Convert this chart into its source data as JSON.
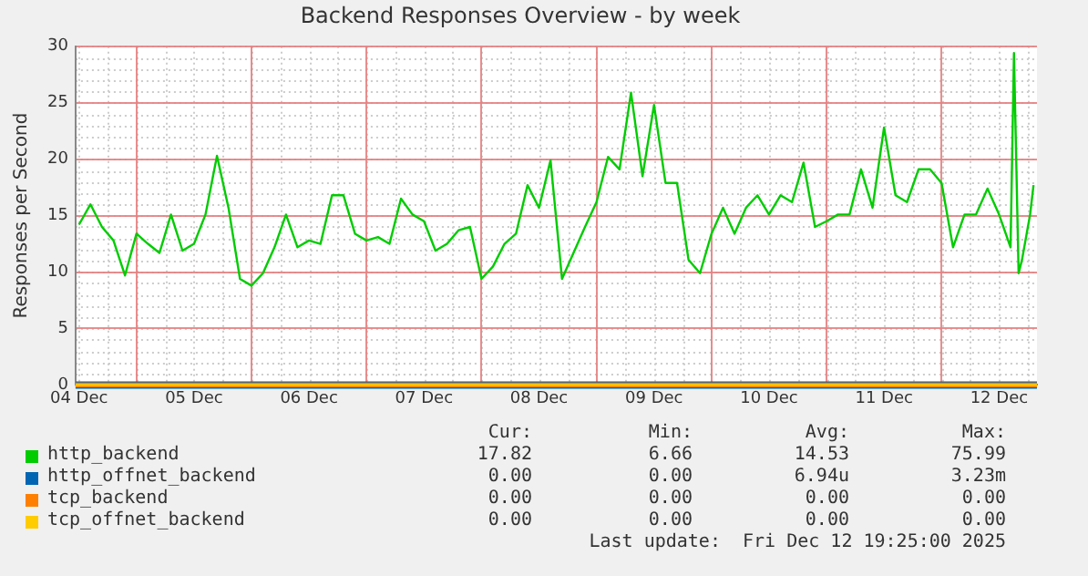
{
  "chart_data": {
    "type": "line",
    "title": "Backend Responses Overview - by week",
    "ylabel": "Responses per Second",
    "xlim": [
      "2025-12-04T11:17",
      "2025-12-12T19:55"
    ],
    "xticks": [
      {
        "value": "2025-12-04T12:00",
        "label": "04 Dec"
      },
      {
        "value": "2025-12-05T00:00",
        "label": null
      },
      {
        "value": "2025-12-05T12:00",
        "label": "05 Dec"
      },
      {
        "value": "2025-12-06T00:00",
        "label": null
      },
      {
        "value": "2025-12-06T12:00",
        "label": "06 Dec"
      },
      {
        "value": "2025-12-07T00:00",
        "label": null
      },
      {
        "value": "2025-12-07T12:00",
        "label": "07 Dec"
      },
      {
        "value": "2025-12-08T00:00",
        "label": null
      },
      {
        "value": "2025-12-08T12:00",
        "label": "08 Dec"
      },
      {
        "value": "2025-12-09T00:00",
        "label": null
      },
      {
        "value": "2025-12-09T12:00",
        "label": "09 Dec"
      },
      {
        "value": "2025-12-10T00:00",
        "label": null
      },
      {
        "value": "2025-12-10T12:00",
        "label": "10 Dec"
      },
      {
        "value": "2025-12-11T00:00",
        "label": null
      },
      {
        "value": "2025-12-11T12:00",
        "label": "11 Dec"
      },
      {
        "value": "2025-12-12T00:00",
        "label": null
      },
      {
        "value": "2025-12-12T12:00",
        "label": "12 Dec"
      }
    ],
    "ylim": [
      0,
      30
    ],
    "yticks": [
      0,
      5,
      10,
      15,
      20,
      25,
      30
    ],
    "grid": true,
    "legend": "bottom",
    "marker": "none",
    "line_style": "solid",
    "x": [
      "2025-12-04T12:00",
      "2025-12-04T14:24",
      "2025-12-04T16:48",
      "2025-12-04T19:12",
      "2025-12-04T21:36",
      "2025-12-05T00:00",
      "2025-12-05T02:24",
      "2025-12-05T04:48",
      "2025-12-05T07:12",
      "2025-12-05T09:36",
      "2025-12-05T12:00",
      "2025-12-05T14:24",
      "2025-12-05T16:48",
      "2025-12-05T19:12",
      "2025-12-05T21:36",
      "2025-12-06T00:00",
      "2025-12-06T02:24",
      "2025-12-06T04:48",
      "2025-12-06T07:12",
      "2025-12-06T09:36",
      "2025-12-06T12:00",
      "2025-12-06T14:24",
      "2025-12-06T16:48",
      "2025-12-06T19:12",
      "2025-12-06T21:36",
      "2025-12-07T00:00",
      "2025-12-07T02:24",
      "2025-12-07T04:48",
      "2025-12-07T07:12",
      "2025-12-07T09:36",
      "2025-12-07T12:00",
      "2025-12-07T14:24",
      "2025-12-07T16:48",
      "2025-12-07T19:12",
      "2025-12-07T21:36",
      "2025-12-08T00:00",
      "2025-12-08T02:24",
      "2025-12-08T04:48",
      "2025-12-08T07:12",
      "2025-12-08T09:36",
      "2025-12-08T12:00",
      "2025-12-08T14:24",
      "2025-12-08T16:48",
      "2025-12-08T19:12",
      "2025-12-08T21:36",
      "2025-12-09T00:00",
      "2025-12-09T02:24",
      "2025-12-09T04:48",
      "2025-12-09T07:12",
      "2025-12-09T09:36",
      "2025-12-09T12:00",
      "2025-12-09T14:24",
      "2025-12-09T16:48",
      "2025-12-09T19:12",
      "2025-12-09T21:36",
      "2025-12-10T00:00",
      "2025-12-10T02:24",
      "2025-12-10T04:48",
      "2025-12-10T07:12",
      "2025-12-10T09:36",
      "2025-12-10T12:00",
      "2025-12-10T14:24",
      "2025-12-10T16:48",
      "2025-12-10T19:12",
      "2025-12-10T21:36",
      "2025-12-11T00:00",
      "2025-12-11T02:24",
      "2025-12-11T04:48",
      "2025-12-11T07:12",
      "2025-12-11T09:36",
      "2025-12-11T12:00",
      "2025-12-11T14:24",
      "2025-12-11T16:48",
      "2025-12-11T19:12",
      "2025-12-11T21:36",
      "2025-12-12T00:00",
      "2025-12-12T02:24",
      "2025-12-12T04:48",
      "2025-12-12T07:12",
      "2025-12-12T09:36",
      "2025-12-12T12:00",
      "2025-12-12T14:24",
      "2025-12-12T15:07",
      "2025-12-12T16:05",
      "2025-12-12T16:48",
      "2025-12-12T18:29",
      "2025-12-12T19:12"
    ],
    "series": [
      {
        "name": "http_backend",
        "color": "#00cc00",
        "values": [
          14.2,
          16,
          14,
          12.8,
          9.7,
          13.4,
          12.5,
          11.7,
          15.1,
          11.9,
          12.5,
          15.1,
          20.3,
          15.7,
          9.4,
          8.8,
          9.9,
          12.2,
          15.1,
          12.2,
          12.8,
          12.5,
          16.8,
          16.8,
          13.4,
          12.8,
          13.1,
          12.5,
          16.5,
          15.1,
          14.5,
          11.9,
          12.5,
          13.7,
          14,
          9.4,
          10.5,
          12.5,
          13.4,
          17.7,
          15.7,
          19.9,
          9.4,
          11.7,
          14,
          16.2,
          20.2,
          19.1,
          25.9,
          18.5,
          24.8,
          17.9,
          17.9,
          11.1,
          9.9,
          13.4,
          15.7,
          13.4,
          15.7,
          16.8,
          15.1,
          16.8,
          16.2,
          19.7,
          14,
          14.5,
          15.1,
          15.1,
          19.1,
          15.7,
          22.8,
          16.8,
          16.2,
          19.1,
          19.1,
          17.9,
          12.2,
          15.1,
          15.1,
          17.4,
          15.1,
          12.2,
          29.4,
          9.9,
          11.1,
          15.1,
          17.7
        ]
      },
      {
        "name": "http_offnet_backend",
        "color": "#0066b3",
        "x": [
          "2025-12-04T11:17",
          "2025-12-12T19:55"
        ],
        "values": [
          0,
          0
        ]
      },
      {
        "name": "tcp_backend",
        "color": "#ff8000",
        "x": [
          "2025-12-04T11:17",
          "2025-12-12T19:55"
        ],
        "values": [
          0,
          0
        ]
      },
      {
        "name": "tcp_offnet_backend",
        "color": "#ffcc00",
        "x": [
          "2025-12-04T11:17",
          "2025-12-12T19:55"
        ],
        "values": [
          0,
          0
        ]
      }
    ],
    "annotations": [
      "Cur:",
      "Min:",
      "Avg:",
      "Max:",
      "17.82",
      "6.66",
      "14.53",
      "75.99",
      "0.00",
      "0.00",
      "6.94u",
      "3.23m",
      "0.00",
      "0.00",
      "0.00",
      "0.00",
      "0.00",
      "0.00",
      "0.00",
      "0.00",
      "Last update:  Fri Dec 12 19:25:00 2025"
    ]
  }
}
